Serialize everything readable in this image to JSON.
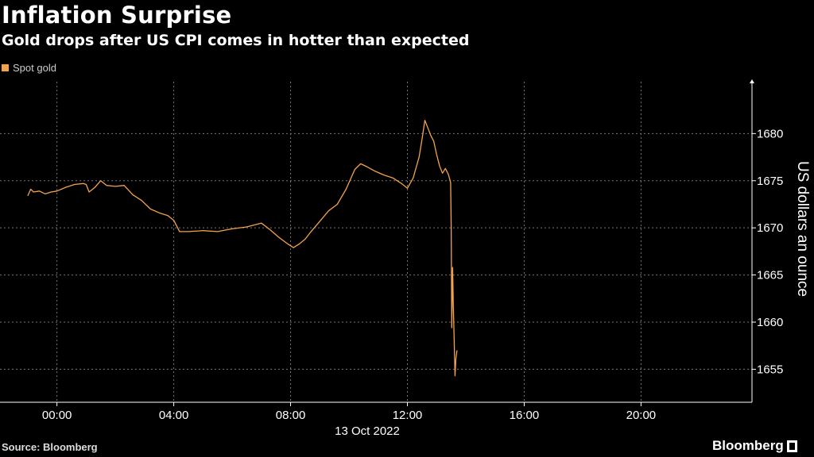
{
  "header": {
    "title": "Inflation Surprise",
    "subtitle": "Gold drops after US CPI comes in hotter than expected"
  },
  "legend": {
    "label": "Spot gold",
    "color": "#f4a24c"
  },
  "footer": {
    "source": "Source: Bloomberg",
    "brand": "Bloomberg"
  },
  "chart_data": {
    "type": "line",
    "title": "Inflation Surprise",
    "subtitle": "Gold drops after US CPI comes in hotter than expected",
    "xlabel": "13 Oct 2022",
    "ylabel": "US dollars an ounce",
    "x_ticks": [
      "00:00",
      "04:00",
      "08:00",
      "12:00",
      "16:00",
      "20:00"
    ],
    "x_tick_hours": [
      0,
      4,
      8,
      12,
      16,
      20
    ],
    "xlim_hours": [
      -1.95,
      23.8
    ],
    "y_ticks": [
      1655,
      1660,
      1665,
      1670,
      1675,
      1680
    ],
    "ylim": [
      1651.5,
      1685.5
    ],
    "y_axis_side": "right",
    "grid": true,
    "legend_position": "top-left",
    "series": [
      {
        "name": "Spot gold",
        "color": "#f4a24c",
        "points": [
          [
            -1.0,
            1673.4
          ],
          [
            -0.9,
            1674.1
          ],
          [
            -0.8,
            1673.8
          ],
          [
            -0.6,
            1673.9
          ],
          [
            -0.4,
            1673.6
          ],
          [
            -0.2,
            1673.8
          ],
          [
            0.0,
            1673.9
          ],
          [
            0.3,
            1674.3
          ],
          [
            0.6,
            1674.6
          ],
          [
            0.9,
            1674.7
          ],
          [
            1.0,
            1674.6
          ],
          [
            1.1,
            1673.8
          ],
          [
            1.3,
            1674.3
          ],
          [
            1.5,
            1675.0
          ],
          [
            1.7,
            1674.5
          ],
          [
            2.0,
            1674.4
          ],
          [
            2.3,
            1674.5
          ],
          [
            2.6,
            1673.5
          ],
          [
            2.9,
            1672.9
          ],
          [
            3.2,
            1672.0
          ],
          [
            3.5,
            1671.6
          ],
          [
            3.8,
            1671.3
          ],
          [
            4.0,
            1670.8
          ],
          [
            4.2,
            1669.6
          ],
          [
            4.5,
            1669.6
          ],
          [
            5.0,
            1669.7
          ],
          [
            5.5,
            1669.6
          ],
          [
            6.0,
            1669.9
          ],
          [
            6.5,
            1670.1
          ],
          [
            7.0,
            1670.5
          ],
          [
            7.3,
            1669.8
          ],
          [
            7.6,
            1669.0
          ],
          [
            7.9,
            1668.3
          ],
          [
            8.1,
            1667.9
          ],
          [
            8.3,
            1668.3
          ],
          [
            8.5,
            1668.8
          ],
          [
            8.7,
            1669.6
          ],
          [
            9.0,
            1670.7
          ],
          [
            9.3,
            1671.8
          ],
          [
            9.6,
            1672.5
          ],
          [
            9.9,
            1674.1
          ],
          [
            10.2,
            1676.2
          ],
          [
            10.4,
            1676.8
          ],
          [
            10.6,
            1676.5
          ],
          [
            10.9,
            1676.0
          ],
          [
            11.2,
            1675.6
          ],
          [
            11.5,
            1675.3
          ],
          [
            11.8,
            1674.7
          ],
          [
            12.0,
            1674.2
          ],
          [
            12.2,
            1675.3
          ],
          [
            12.4,
            1677.5
          ],
          [
            12.5,
            1679.4
          ],
          [
            12.6,
            1681.4
          ],
          [
            12.7,
            1680.6
          ],
          [
            12.8,
            1679.8
          ],
          [
            12.9,
            1679.2
          ],
          [
            13.0,
            1677.8
          ],
          [
            13.1,
            1676.6
          ],
          [
            13.2,
            1675.8
          ],
          [
            13.3,
            1676.3
          ],
          [
            13.4,
            1675.7
          ],
          [
            13.48,
            1674.8
          ],
          [
            13.5,
            1670.2
          ],
          [
            13.52,
            1659.4
          ],
          [
            13.55,
            1665.8
          ],
          [
            13.57,
            1662.0
          ],
          [
            13.6,
            1658.3
          ],
          [
            13.63,
            1654.3
          ],
          [
            13.66,
            1656.1
          ],
          [
            13.7,
            1657.0
          ]
        ]
      }
    ]
  }
}
